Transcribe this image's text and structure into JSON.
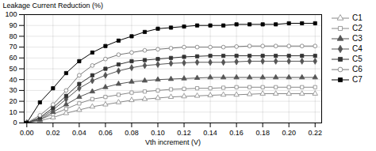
{
  "chart_data": {
    "type": "line",
    "xlabel": "Vth increment (V)",
    "ylabel": "Leakage Current Reduction (%)",
    "x": [
      0.0,
      0.01,
      0.02,
      0.03,
      0.04,
      0.05,
      0.06,
      0.07,
      0.08,
      0.09,
      0.1,
      0.11,
      0.12,
      0.13,
      0.14,
      0.15,
      0.16,
      0.17,
      0.18,
      0.19,
      0.2,
      0.21,
      0.22
    ],
    "series": [
      {
        "name": "C1",
        "color": "#888888",
        "marker": "triangle-open",
        "values": [
          0,
          2,
          5,
          9,
          12,
          15,
          17,
          19,
          21,
          22,
          23,
          24,
          24.5,
          25,
          25.5,
          26,
          26,
          26.5,
          27,
          27,
          27,
          27,
          27
        ]
      },
      {
        "name": "C2",
        "color": "#888888",
        "marker": "square-open",
        "values": [
          0,
          3,
          8,
          13,
          18,
          22,
          24,
          26,
          28,
          29,
          30,
          31,
          31.5,
          32,
          32,
          32.5,
          33,
          33,
          33,
          33,
          33,
          33,
          33
        ]
      },
      {
        "name": "C3",
        "color": "#555555",
        "marker": "triangle",
        "values": [
          0,
          3,
          10,
          17,
          24,
          29,
          33,
          36,
          38,
          39,
          40,
          40.5,
          41,
          41.5,
          42,
          42,
          42,
          42,
          42,
          42,
          42,
          42,
          42
        ]
      },
      {
        "name": "C4",
        "color": "#555555",
        "marker": "diamond",
        "values": [
          0,
          4,
          12,
          22,
          32,
          39,
          44,
          48,
          51,
          53,
          54,
          55,
          55.5,
          56,
          56,
          56,
          56.5,
          57,
          57,
          57,
          57,
          57,
          57
        ]
      },
      {
        "name": "C5",
        "color": "#333333",
        "marker": "square",
        "values": [
          0,
          5,
          14,
          25,
          36,
          44,
          50,
          54,
          57,
          58,
          59,
          60,
          61,
          61.5,
          62,
          62,
          62,
          62,
          62,
          62,
          62,
          62,
          62
        ]
      },
      {
        "name": "C6",
        "color": "#777777",
        "marker": "circle-open",
        "values": [
          0,
          7,
          17,
          30,
          44,
          53,
          59,
          63,
          65,
          67,
          68,
          69,
          70,
          70,
          70,
          70,
          70.5,
          71,
          71,
          71,
          71,
          71,
          71
        ]
      },
      {
        "name": "C7",
        "color": "#000000",
        "marker": "square",
        "values": [
          0,
          19,
          32,
          46,
          57,
          65,
          71,
          76,
          80,
          84,
          87,
          88,
          89,
          90,
          90,
          90,
          91,
          91,
          91,
          91,
          92,
          92,
          92
        ]
      }
    ],
    "xlim": [
      -0.002,
      0.225
    ],
    "ylim": [
      0,
      100
    ],
    "xticks": [
      {
        "value": 0,
        "label": "0.00"
      },
      0.02,
      0.04,
      0.06,
      0.08,
      {
        "value": 0.1,
        "label": "0.10"
      },
      0.12,
      0.14,
      0.16,
      0.18,
      {
        "value": 0.2,
        "label": "0.20"
      },
      0.22
    ],
    "yticks": [
      0,
      10,
      20,
      30,
      40,
      50,
      60,
      70,
      80,
      90,
      100
    ],
    "grid": true,
    "legend": "right"
  }
}
